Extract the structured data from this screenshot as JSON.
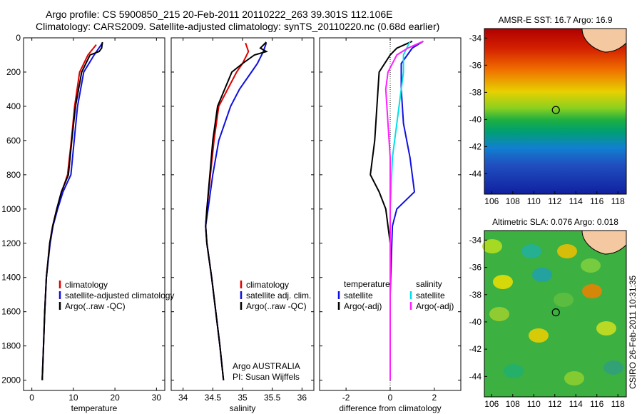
{
  "header": {
    "line1": "Argo profile: CS 5900850_215 20-Feb-2011 20110222_263 39.301S 112.106E",
    "line2": "Climatology: CARS2009. Satellite-adjusted climatology: synTS_20110220.nc (0.68d earlier)"
  },
  "stamp": "CSIRO 26-Feb-2011 10:31:35",
  "colors": {
    "climatology": "#e00000",
    "satellite": "#1010e0",
    "argo": "#000000",
    "cyan": "#00e0e8",
    "magenta": "#ff20ff"
  },
  "chart_data": [
    {
      "type": "line",
      "xlabel": "temperature",
      "xlim": [
        -2,
        32
      ],
      "ylim": [
        2060,
        0
      ],
      "xticks": [
        "0",
        "10",
        "20",
        "30"
      ],
      "yticks": [
        "0",
        "200",
        "400",
        "600",
        "800",
        "1000",
        "1200",
        "1400",
        "1600",
        "1800",
        "2000"
      ],
      "legend": [
        "climatology",
        "satellite-adjusted climatology",
        "Argo(..raw -QC)"
      ],
      "series": [
        {
          "name": "climatology",
          "color": "#e00000",
          "points": [
            [
              15.5,
              40
            ],
            [
              13.5,
              100
            ],
            [
              11.5,
              200
            ],
            [
              10.3,
              400
            ],
            [
              9.5,
              600
            ],
            [
              8.6,
              800
            ],
            [
              7.2,
              900
            ],
            [
              6,
              1000
            ],
            [
              5,
              1100
            ],
            [
              4.3,
              1200
            ],
            [
              3.5,
              1400
            ],
            [
              3.1,
              1600
            ],
            [
              2.8,
              1800
            ],
            [
              2.5,
              2000
            ]
          ]
        },
        {
          "name": "satellite-adjusted climatology",
          "color": "#1010e0",
          "points": [
            [
              17,
              30
            ],
            [
              15,
              100
            ],
            [
              12.5,
              200
            ],
            [
              11,
              400
            ],
            [
              10.2,
              600
            ],
            [
              9.4,
              800
            ],
            [
              7.5,
              900
            ],
            [
              6.2,
              1000
            ],
            [
              5.1,
              1100
            ],
            [
              4.4,
              1200
            ],
            [
              3.5,
              1400
            ],
            [
              3.1,
              1600
            ],
            [
              2.8,
              1800
            ],
            [
              2.5,
              2000
            ]
          ]
        },
        {
          "name": "Argo(..raw -QC)",
          "color": "#000000",
          "points": [
            [
              17,
              25
            ],
            [
              16.8,
              60
            ],
            [
              16.2,
              80
            ],
            [
              14,
              100
            ],
            [
              12,
              200
            ],
            [
              10.5,
              400
            ],
            [
              9.6,
              600
            ],
            [
              8.8,
              800
            ],
            [
              7.1,
              900
            ],
            [
              6,
              1000
            ],
            [
              5,
              1100
            ],
            [
              4.3,
              1200
            ],
            [
              3.5,
              1400
            ],
            [
              3.1,
              1600
            ],
            [
              2.8,
              1800
            ],
            [
              2.5,
              2000
            ]
          ]
        }
      ]
    },
    {
      "type": "line",
      "xlabel": "salinity",
      "xlim": [
        33.8,
        36.2
      ],
      "ylim": [
        2060,
        0
      ],
      "xticks": [
        "34",
        "34.5",
        "35",
        "35.5",
        "36"
      ],
      "legend": [
        "climatology",
        "satellite adj. clim.",
        "Argo(..raw -QC)"
      ],
      "annotation": [
        "Argo AUSTRALIA",
        "PI: Susan Wijffels"
      ],
      "series": [
        {
          "name": "climatology",
          "color": "#e00000",
          "points": [
            [
              35.05,
              30
            ],
            [
              35.1,
              80
            ],
            [
              35,
              150
            ],
            [
              34.9,
              200
            ],
            [
              34.75,
              300
            ],
            [
              34.6,
              400
            ],
            [
              34.52,
              600
            ],
            [
              34.46,
              800
            ],
            [
              34.4,
              1000
            ],
            [
              34.38,
              1100
            ],
            [
              34.4,
              1200
            ],
            [
              34.48,
              1400
            ],
            [
              34.55,
              1600
            ],
            [
              34.62,
              1800
            ],
            [
              34.68,
              2000
            ]
          ]
        },
        {
          "name": "satellite adj. clim.",
          "color": "#1010e0",
          "points": [
            [
              35.4,
              30
            ],
            [
              35.35,
              80
            ],
            [
              35.25,
              150
            ],
            [
              35.15,
              200
            ],
            [
              34.95,
              300
            ],
            [
              34.8,
              400
            ],
            [
              34.6,
              600
            ],
            [
              34.5,
              800
            ],
            [
              34.42,
              1000
            ],
            [
              34.38,
              1100
            ],
            [
              34.4,
              1200
            ],
            [
              34.48,
              1400
            ],
            [
              34.55,
              1600
            ],
            [
              34.62,
              1800
            ],
            [
              34.68,
              2000
            ]
          ]
        },
        {
          "name": "Argo(..raw -QC)",
          "color": "#000000",
          "points": [
            [
              35.4,
              25
            ],
            [
              35.3,
              60
            ],
            [
              35.4,
              80
            ],
            [
              35.2,
              100
            ],
            [
              35,
              150
            ],
            [
              34.82,
              200
            ],
            [
              34.7,
              300
            ],
            [
              34.58,
              400
            ],
            [
              34.5,
              600
            ],
            [
              34.45,
              800
            ],
            [
              34.4,
              1000
            ],
            [
              34.38,
              1100
            ],
            [
              34.4,
              1200
            ],
            [
              34.48,
              1400
            ],
            [
              34.55,
              1600
            ],
            [
              34.62,
              1800
            ],
            [
              34.68,
              2000
            ]
          ]
        }
      ]
    },
    {
      "type": "line",
      "xlabel": "difference from climatology",
      "xlim": [
        -3.2,
        3.2
      ],
      "ylim": [
        2060,
        0
      ],
      "xticks": [
        "-2",
        "0",
        "2"
      ],
      "legend_left": [
        "temperature",
        "satellite",
        "Argo(-adj)"
      ],
      "legend_right": [
        "salinity",
        "satellite",
        "Argo(-adj)"
      ],
      "series": [
        {
          "name": "temperature satellite",
          "color": "#1010e0",
          "points": [
            [
              1.5,
              20
            ],
            [
              1,
              60
            ],
            [
              0.5,
              150
            ],
            [
              0.5,
              300
            ],
            [
              0.6,
              500
            ],
            [
              0.9,
              700
            ],
            [
              1.1,
              900
            ],
            [
              0.3,
              1000
            ],
            [
              0.1,
              1100
            ],
            [
              0.05,
              1300
            ],
            [
              0,
              1500
            ],
            [
              0,
              2000
            ]
          ]
        },
        {
          "name": "temperature Argo(-adj)",
          "color": "#000000",
          "points": [
            [
              1,
              20
            ],
            [
              0.3,
              60
            ],
            [
              0,
              100
            ],
            [
              -0.5,
              200
            ],
            [
              -0.6,
              400
            ],
            [
              -0.7,
              600
            ],
            [
              -0.9,
              800
            ],
            [
              -0.5,
              900
            ],
            [
              -0.2,
              1000
            ],
            [
              0,
              1200
            ],
            [
              0,
              1500
            ],
            [
              0,
              2000
            ]
          ]
        },
        {
          "name": "salinity satellite",
          "color": "#00e0e8",
          "points": [
            [
              0.9,
              20
            ],
            [
              0.6,
              100
            ],
            [
              0.6,
              200
            ],
            [
              0.5,
              300
            ],
            [
              0.3,
              500
            ],
            [
              0.1,
              700
            ],
            [
              0,
              1000
            ],
            [
              0,
              2000
            ]
          ]
        },
        {
          "name": "salinity Argo(-adj)",
          "color": "#ff20ff",
          "points": [
            [
              1.5,
              20
            ],
            [
              0.8,
              60
            ],
            [
              0.3,
              100
            ],
            [
              -0.1,
              200
            ],
            [
              -0.2,
              300
            ],
            [
              -0.1,
              500
            ],
            [
              0,
              700
            ],
            [
              0,
              900
            ],
            [
              0,
              2000
            ]
          ]
        }
      ]
    }
  ],
  "maps": [
    {
      "title": "AMSR-E SST: 16.7 Argo: 16.9",
      "xticks": [
        "106",
        "108",
        "110",
        "112",
        "114",
        "116",
        "118"
      ],
      "yticks": [
        "-34",
        "-36",
        "-38",
        "-40",
        "-42",
        "-44"
      ],
      "marker": {
        "lon": 112.1,
        "lat": -39.3
      }
    },
    {
      "title": "Altimetric SLA: 0.076 Argo: 0.018",
      "xticks": [
        "106",
        "108",
        "110",
        "112",
        "114",
        "116",
        "118"
      ],
      "yticks": [
        "-34",
        "-36",
        "-38",
        "-40",
        "-42",
        "-44"
      ],
      "marker": {
        "lon": 112.1,
        "lat": -39.3
      }
    }
  ]
}
